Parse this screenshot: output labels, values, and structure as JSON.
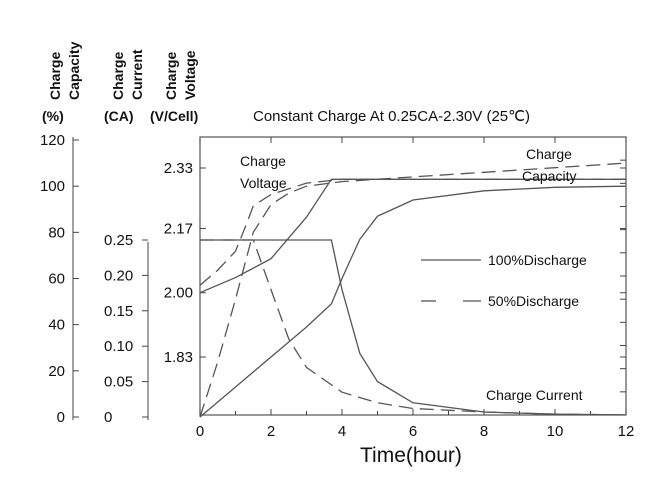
{
  "chart_data": {
    "type": "line",
    "title": "Constant Charge At 0.25CA-2.30V  (25℃)",
    "xlabel": "Time(hour)",
    "xlim": [
      0,
      12
    ],
    "x_ticks": [
      "0",
      "2",
      "4",
      "6",
      "8",
      "10",
      "12"
    ],
    "axes": {
      "capacity": {
        "header": [
          "Charge",
          "Capacity"
        ],
        "unit": "(%)",
        "ylim": [
          0,
          120
        ],
        "ticks": [
          "0",
          "20",
          "40",
          "60",
          "80",
          "100",
          "120"
        ]
      },
      "current": {
        "header": [
          "Charge",
          "Current"
        ],
        "unit": "(CA)",
        "ylim": [
          0,
          0.25
        ],
        "ticks": [
          "0",
          "0.05",
          "0.10",
          "0.15",
          "0.20",
          "0.25"
        ]
      },
      "voltage": {
        "header": [
          "Charge",
          "Voltage"
        ],
        "unit": "(V/Cell)",
        "ylim": [
          1.83,
          2.33
        ],
        "ticks": [
          "1.83",
          "2.00",
          "2.17",
          "2.33"
        ]
      }
    },
    "legend": {
      "position": "right",
      "entries": [
        {
          "label": "100%Discharge",
          "style": "solid"
        },
        {
          "label": "50%Discharge",
          "style": "dashed"
        }
      ]
    },
    "annotations": {
      "voltage": [
        "Charge",
        "Voltage"
      ],
      "capacity": [
        "Charge",
        "Capacity"
      ],
      "current": "Charge Current"
    },
    "curves": [
      {
        "legend": "100%Discharge",
        "quantity": "voltage",
        "style": "solid",
        "x": [
          0,
          1,
          2,
          3,
          3.7,
          5,
          6,
          8,
          10,
          12
        ],
        "y": [
          2.0,
          2.04,
          2.09,
          2.2,
          2.3,
          2.3,
          2.3,
          2.3,
          2.3,
          2.3
        ]
      },
      {
        "legend": "50%Discharge",
        "quantity": "voltage",
        "style": "dashed",
        "x": [
          0,
          0.5,
          1,
          1.3,
          1.5,
          2,
          3,
          4,
          6,
          8,
          10,
          12
        ],
        "y": [
          2.02,
          2.06,
          2.11,
          2.18,
          2.23,
          2.26,
          2.29,
          2.3,
          2.3,
          2.3,
          2.3,
          2.3
        ]
      },
      {
        "legend": "100%Discharge",
        "quantity": "current",
        "style": "solid",
        "x": [
          0,
          3.7,
          4,
          4.5,
          5,
          6,
          8,
          10,
          12
        ],
        "y": [
          0.25,
          0.25,
          0.18,
          0.09,
          0.05,
          0.02,
          0.007,
          0.004,
          0.003
        ]
      },
      {
        "legend": "50%Discharge",
        "quantity": "current",
        "style": "dashed",
        "x": [
          0,
          1.5,
          2,
          2.5,
          3,
          4,
          5,
          6,
          8,
          10,
          12
        ],
        "y": [
          0.25,
          0.25,
          0.18,
          0.11,
          0.07,
          0.035,
          0.02,
          0.012,
          0.007,
          0.004,
          0.003
        ]
      },
      {
        "legend": "100%Discharge",
        "quantity": "capacity",
        "style": "solid",
        "x": [
          0,
          1,
          2,
          3,
          3.7,
          4,
          4.5,
          5,
          6,
          8,
          10,
          12
        ],
        "y": [
          0,
          13,
          26,
          39,
          49,
          60,
          77,
          87,
          94,
          98,
          99.5,
          100
        ]
      },
      {
        "legend": "50%Discharge",
        "quantity": "capacity",
        "style": "dashed",
        "x": [
          0,
          0.5,
          1,
          1.5,
          2,
          2.5,
          3,
          4,
          6,
          8,
          10,
          12
        ],
        "y": [
          0,
          24,
          51,
          80,
          92,
          97,
          100,
          102,
          104,
          106,
          108,
          110
        ]
      }
    ]
  }
}
